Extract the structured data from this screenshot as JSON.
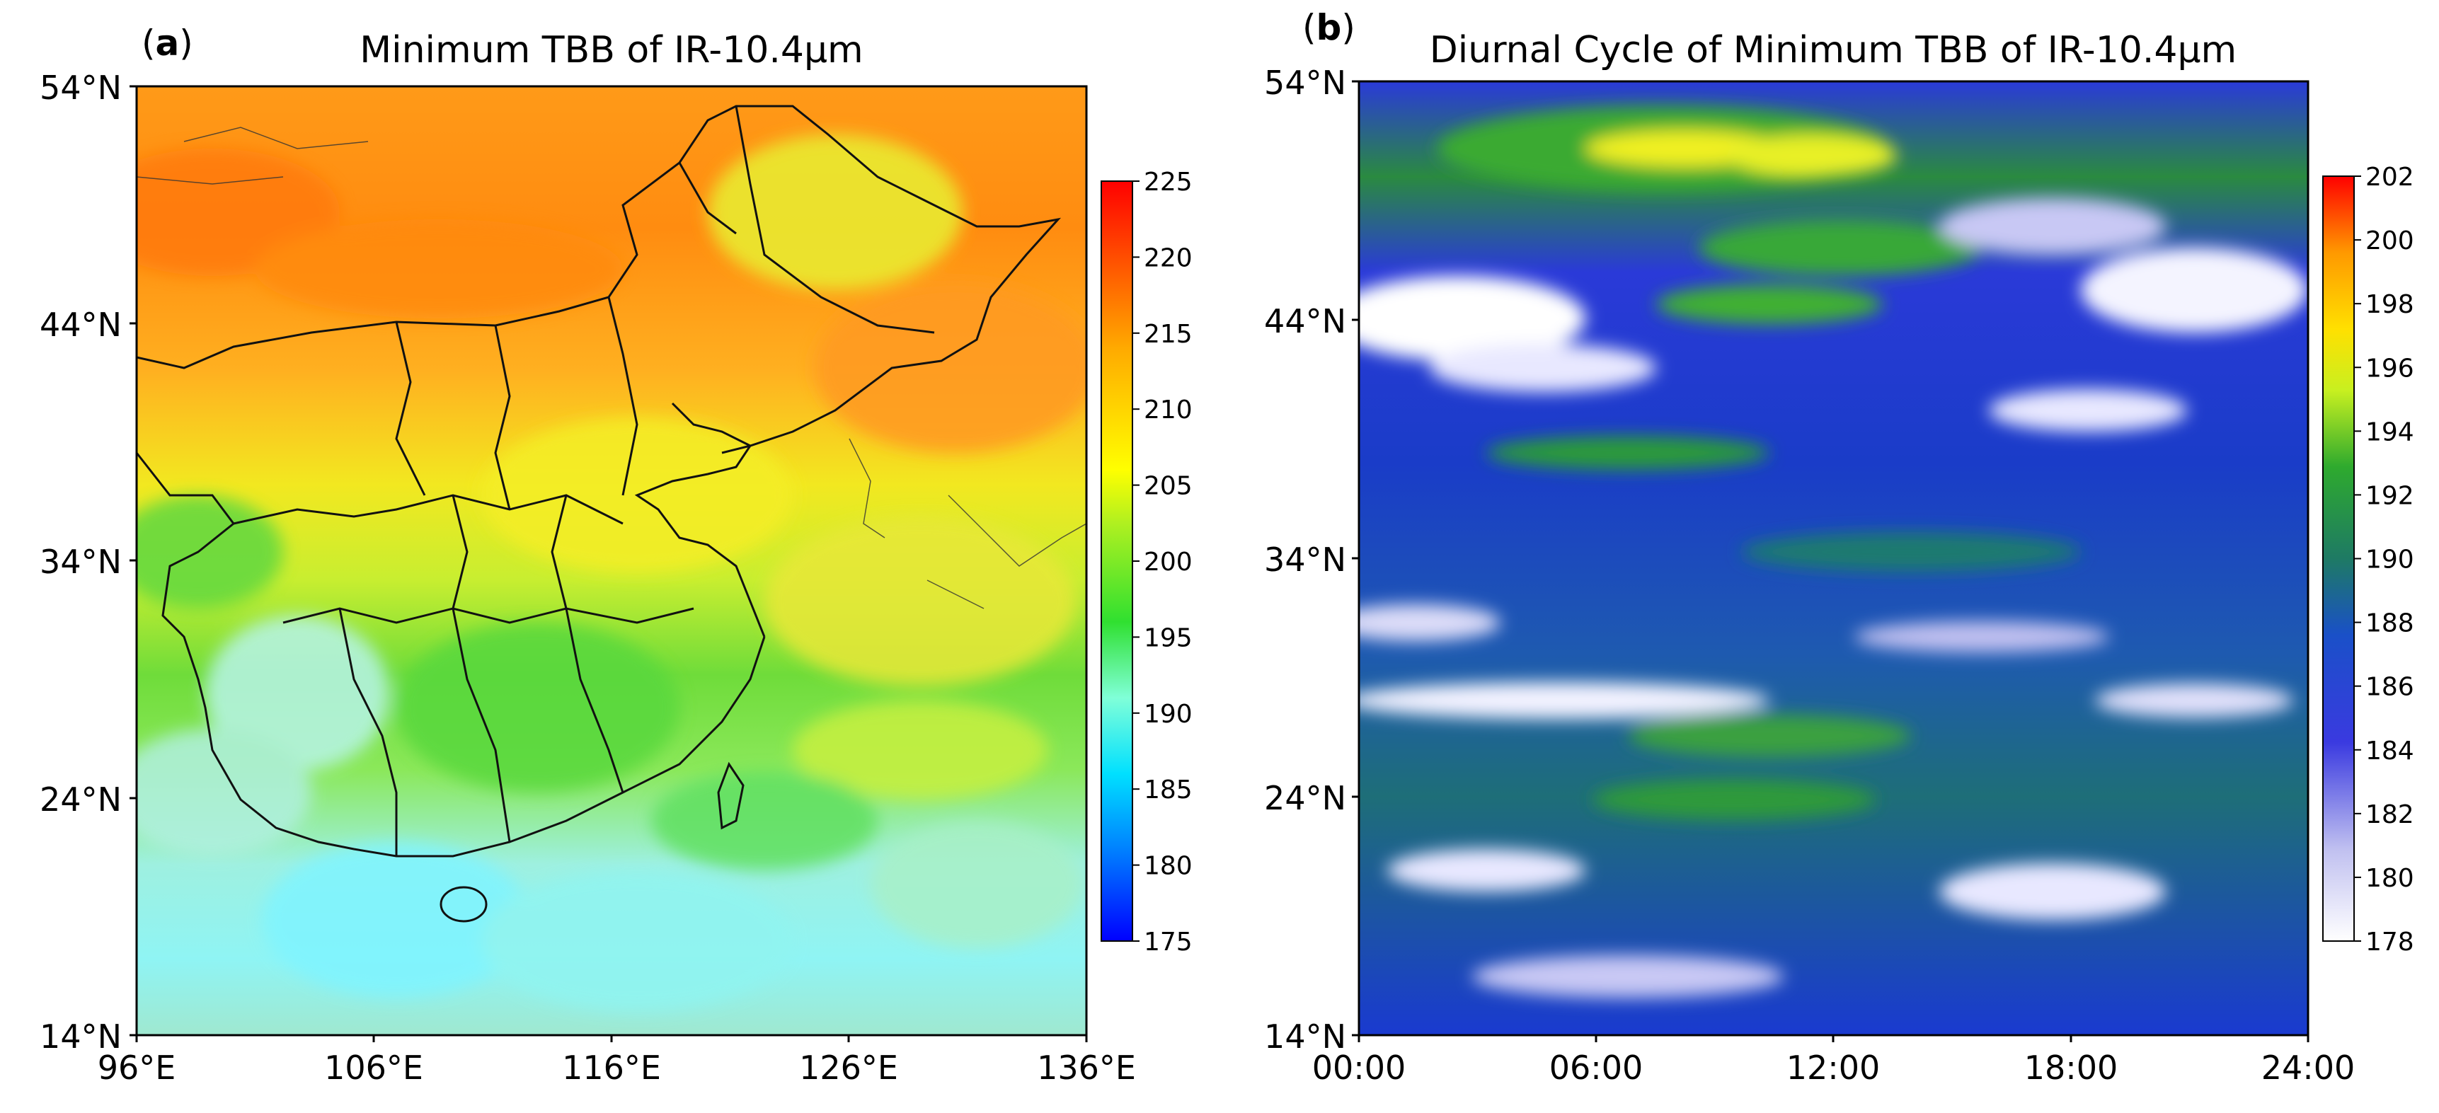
{
  "chart_data": [
    {
      "type": "heatmap",
      "panel_label": "a",
      "title": "Minimum TBB of IR-10.4μm",
      "x_ticks": [
        "96°E",
        "106°E",
        "116°E",
        "126°E",
        "136°E"
      ],
      "y_ticks": [
        "54°N",
        "44°N",
        "34°N",
        "24°N",
        "14°N"
      ],
      "xlim": [
        96,
        136
      ],
      "ylim": [
        14,
        54
      ],
      "colorbar_ticks": [
        225,
        220,
        215,
        210,
        205,
        200,
        195,
        190,
        185,
        180,
        175
      ],
      "colorbar_range": [
        175,
        225
      ],
      "colormap": [
        "#0000ff",
        "#00aaff",
        "#00ffff",
        "#7fffd4",
        "#22cc22",
        "#ffff00",
        "#ff9900",
        "#ff0000"
      ],
      "grid": false,
      "legend": "colorbar-right",
      "basemap": "political boundaries",
      "field_summary": [
        {
          "region": "north (44–54°N)",
          "range": [
            208,
            216
          ]
        },
        {
          "region": "central (34–44°N)",
          "range": [
            203,
            212
          ]
        },
        {
          "region": "south China (24–34°N)",
          "range": [
            193,
            200
          ]
        },
        {
          "region": "far south (14–24°N)",
          "range": [
            185,
            195
          ]
        }
      ]
    },
    {
      "type": "heatmap",
      "panel_label": "b",
      "title": "Diurnal Cycle of Minimum TBB of IR-10.4μm",
      "x_ticks": [
        "00:00",
        "06:00",
        "12:00",
        "18:00",
        "24:00"
      ],
      "y_ticks": [
        "54°N",
        "44°N",
        "34°N",
        "24°N",
        "14°N"
      ],
      "xlim": [
        "00:00",
        "24:00"
      ],
      "ylim": [
        14,
        54
      ],
      "colorbar_ticks": [
        202,
        200,
        198,
        196,
        194,
        192,
        190,
        188,
        186,
        184,
        182,
        180,
        178
      ],
      "colorbar_range": [
        178,
        202
      ],
      "colormap": [
        "#ffffff",
        "#c8c8f0",
        "#3a3ae0",
        "#1a50c8",
        "#1e8a50",
        "#2eaa2e",
        "#ffff00",
        "#ff9900",
        "#ff0000"
      ],
      "grid": false,
      "legend": "colorbar-right",
      "field_summary": [
        {
          "feature": "green/yellow maximum",
          "time": "06:00–14:00",
          "lat": [
            50,
            52
          ],
          "value_approx": 196
        },
        {
          "feature": "white minimum",
          "time": "00:00–08:00",
          "lat": [
            43,
            45
          ],
          "value_approx": 178
        },
        {
          "feature": "white band",
          "time": "00:00–10:00",
          "lat": [
            27,
            28
          ],
          "value_approx": 180
        },
        {
          "feature": "background",
          "value_approx": 184
        }
      ]
    }
  ]
}
